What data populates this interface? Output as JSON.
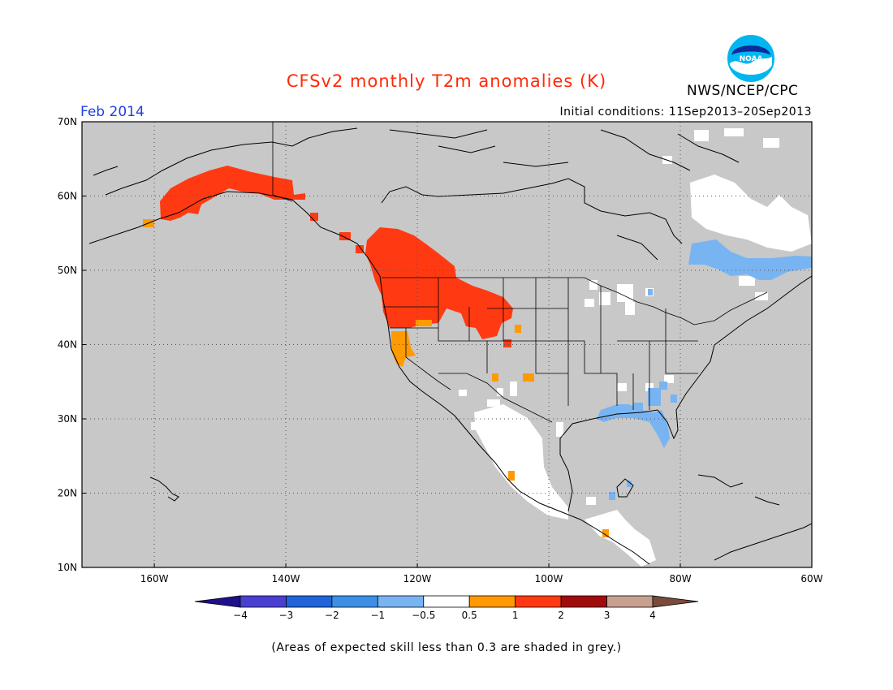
{
  "header": {
    "title": "CFSv2 monthly T2m anomalies (K)",
    "org": "NWS/NCEP/CPC",
    "logo_text": "NOAA",
    "month": "Feb 2014",
    "initial_conditions": "Initial conditions: 11Sep2013–20Sep2013"
  },
  "map": {
    "lon_range": [
      -171,
      -60
    ],
    "lat_range": [
      10,
      70
    ],
    "lon_ticks": [
      {
        "lon": -160,
        "label": "160W"
      },
      {
        "lon": -140,
        "label": "140W"
      },
      {
        "lon": -120,
        "label": "120W"
      },
      {
        "lon": -100,
        "label": "100W"
      },
      {
        "lon": -80,
        "label": "80W"
      },
      {
        "lon": -60,
        "label": "60W"
      }
    ],
    "lat_ticks": [
      {
        "lat": 10,
        "label": "10N"
      },
      {
        "lat": 20,
        "label": "20N"
      },
      {
        "lat": 30,
        "label": "30N"
      },
      {
        "lat": 40,
        "label": "40N"
      },
      {
        "lat": 50,
        "label": "50N"
      },
      {
        "lat": 60,
        "label": "60N"
      },
      {
        "lat": 70,
        "label": "70N"
      }
    ],
    "background_color": "#c8c8c8",
    "line_color": "#000000"
  },
  "legend": {
    "boundaries": [
      {
        "value": -4,
        "label": "−4"
      },
      {
        "value": -3,
        "label": "−3"
      },
      {
        "value": -2,
        "label": "−2"
      },
      {
        "value": -1,
        "label": "−1"
      },
      {
        "value": -0.5,
        "label": "−0.5"
      },
      {
        "value": 0.5,
        "label": "0.5"
      },
      {
        "value": 1,
        "label": "1"
      },
      {
        "value": 2,
        "label": "2"
      },
      {
        "value": 3,
        "label": "3"
      },
      {
        "value": 4,
        "label": "4"
      }
    ],
    "colors": [
      "#1e0f8c",
      "#4b3fd2",
      "#1f64d8",
      "#3d8fe6",
      "#78b4f2",
      "#ffffff",
      "#ff9a00",
      "#ff3a12",
      "#a00c0c",
      "#c8a090",
      "#7a4a3a"
    ]
  },
  "footer": {
    "note": "(Areas of expected skill less than 0.3 are shaded in grey.)"
  },
  "anomaly_regions": [
    {
      "category": "1 to 2",
      "color": "#ff3a12",
      "area": "Alaska south coast"
    },
    {
      "category": "1 to 2",
      "color": "#ff3a12",
      "area": "Pacific Northwest / western Canada"
    },
    {
      "category": "0.5 to 1",
      "color": "#ff9a00",
      "area": "Northern California"
    },
    {
      "category": "-0.5 to 0.5",
      "color": "#ffffff",
      "area": "Mexico and Southwest US"
    },
    {
      "category": "-0.5 to 0.5",
      "color": "#ffffff",
      "area": "Eastern Canada / Labrador"
    },
    {
      "category": "-1 to -0.5",
      "color": "#78b4f2",
      "area": "Quebec"
    },
    {
      "category": "-1 to -0.5",
      "color": "#78b4f2",
      "area": "Southeast US / Florida"
    }
  ]
}
